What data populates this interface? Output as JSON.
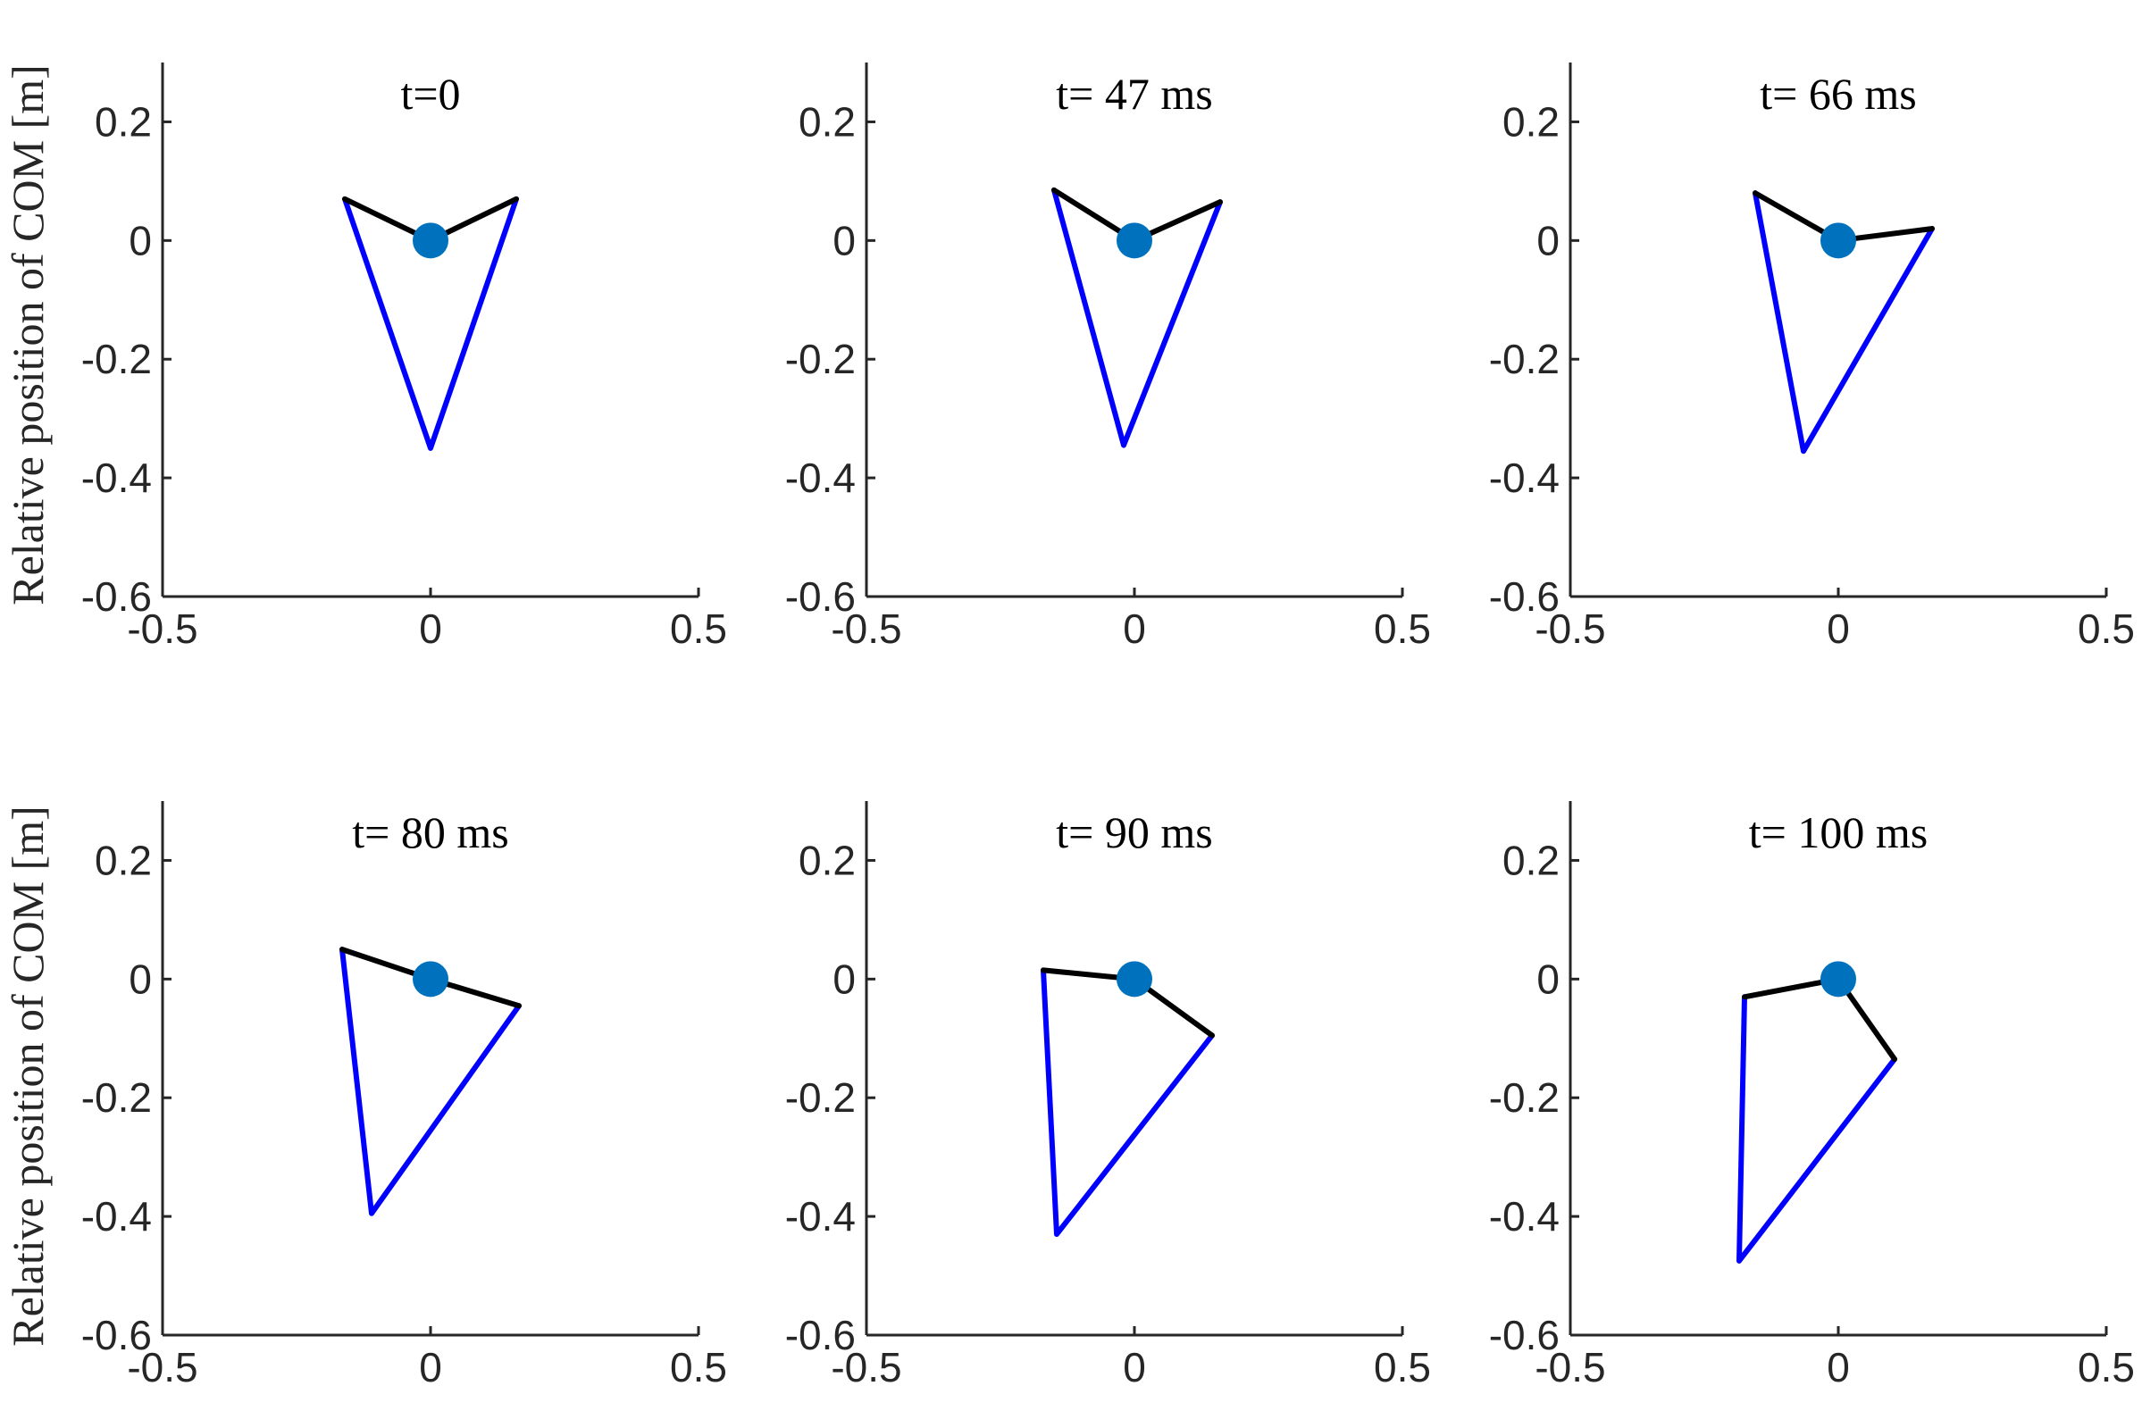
{
  "figure": {
    "ylabel": "Relative position of  COM [m]"
  },
  "colors": {
    "legs": "#0000ff",
    "trunk": "#000000",
    "com": "#0072bd",
    "axes": "#262626"
  },
  "chart_data": [
    {
      "type": "line",
      "title": "t=0",
      "xlim": [
        -0.5,
        0.5
      ],
      "ylim": [
        -0.6,
        0.3
      ],
      "xticks": [
        -0.5,
        0,
        0.5
      ],
      "xtick_labels": [
        "-0.5",
        "0",
        "0.5"
      ],
      "yticks": [
        0.2,
        0,
        -0.2,
        -0.4,
        -0.6
      ],
      "ytick_labels": [
        "0.2",
        "0",
        "-0.2",
        "-0.4",
        "-0.6"
      ],
      "series": [
        {
          "name": "legs",
          "x": [
            -0.16,
            0.0,
            0.16
          ],
          "y": [
            0.07,
            -0.35,
            0.07
          ]
        },
        {
          "name": "trunk",
          "x": [
            -0.16,
            0.0,
            0.16
          ],
          "y": [
            0.07,
            0.0,
            0.07
          ]
        },
        {
          "name": "com",
          "x": [
            0.0
          ],
          "y": [
            0.0
          ]
        }
      ]
    },
    {
      "type": "line",
      "title": "t= 47 ms",
      "xlim": [
        -0.5,
        0.5
      ],
      "ylim": [
        -0.6,
        0.3
      ],
      "xticks": [
        -0.5,
        0,
        0.5
      ],
      "xtick_labels": [
        "-0.5",
        "0",
        "0.5"
      ],
      "yticks": [
        0.2,
        0,
        -0.2,
        -0.4,
        -0.6
      ],
      "ytick_labels": [
        "0.2",
        "0",
        "-0.2",
        "-0.4",
        "-0.6"
      ],
      "series": [
        {
          "name": "legs",
          "x": [
            -0.15,
            -0.02,
            0.16
          ],
          "y": [
            0.085,
            -0.345,
            0.065
          ]
        },
        {
          "name": "trunk",
          "x": [
            -0.15,
            0.0,
            0.16
          ],
          "y": [
            0.085,
            0.0,
            0.065
          ]
        },
        {
          "name": "com",
          "x": [
            0.0
          ],
          "y": [
            0.0
          ]
        }
      ]
    },
    {
      "type": "line",
      "title": "t= 66 ms",
      "xlim": [
        -0.5,
        0.5
      ],
      "ylim": [
        -0.6,
        0.3
      ],
      "xticks": [
        -0.5,
        0,
        0.5
      ],
      "xtick_labels": [
        "-0.5",
        "0",
        "0.5"
      ],
      "yticks": [
        0.2,
        0,
        -0.2,
        -0.4,
        -0.6
      ],
      "ytick_labels": [
        "0.2",
        "0",
        "-0.2",
        "-0.4",
        "-0.6"
      ],
      "series": [
        {
          "name": "legs",
          "x": [
            -0.155,
            -0.065,
            0.175
          ],
          "y": [
            0.08,
            -0.355,
            0.02
          ]
        },
        {
          "name": "trunk",
          "x": [
            -0.155,
            0.0,
            0.175
          ],
          "y": [
            0.08,
            0.0,
            0.02
          ]
        },
        {
          "name": "com",
          "x": [
            0.0
          ],
          "y": [
            0.0
          ]
        }
      ]
    },
    {
      "type": "line",
      "title": "t= 80 ms",
      "xlim": [
        -0.5,
        0.5
      ],
      "ylim": [
        -0.6,
        0.3
      ],
      "xticks": [
        -0.5,
        0,
        0.5
      ],
      "xtick_labels": [
        "-0.5",
        "0",
        "0.5"
      ],
      "yticks": [
        0.2,
        0,
        -0.2,
        -0.4,
        -0.6
      ],
      "ytick_labels": [
        "0.2",
        "0",
        "-0.2",
        "-0.4",
        "-0.6"
      ],
      "series": [
        {
          "name": "legs",
          "x": [
            -0.165,
            -0.11,
            0.165
          ],
          "y": [
            0.05,
            -0.395,
            -0.045
          ]
        },
        {
          "name": "trunk",
          "x": [
            -0.165,
            0.0,
            0.165
          ],
          "y": [
            0.05,
            0.0,
            -0.045
          ]
        },
        {
          "name": "com",
          "x": [
            0.0
          ],
          "y": [
            0.0
          ]
        }
      ]
    },
    {
      "type": "line",
      "title": "t= 90 ms",
      "xlim": [
        -0.5,
        0.5
      ],
      "ylim": [
        -0.6,
        0.3
      ],
      "xticks": [
        -0.5,
        0,
        0.5
      ],
      "xtick_labels": [
        "-0.5",
        "0",
        "0.5"
      ],
      "yticks": [
        0.2,
        0,
        -0.2,
        -0.4,
        -0.6
      ],
      "ytick_labels": [
        "0.2",
        "0",
        "-0.2",
        "-0.4",
        "-0.6"
      ],
      "series": [
        {
          "name": "legs",
          "x": [
            -0.17,
            -0.145,
            0.145
          ],
          "y": [
            0.015,
            -0.43,
            -0.095
          ]
        },
        {
          "name": "trunk",
          "x": [
            -0.17,
            0.0,
            0.145
          ],
          "y": [
            0.015,
            0.0,
            -0.095
          ]
        },
        {
          "name": "com",
          "x": [
            0.0
          ],
          "y": [
            0.0
          ]
        }
      ]
    },
    {
      "type": "line",
      "title": "t= 100 ms",
      "xlim": [
        -0.5,
        0.5
      ],
      "ylim": [
        -0.6,
        0.3
      ],
      "xticks": [
        -0.5,
        0,
        0.5
      ],
      "xtick_labels": [
        "-0.5",
        "0",
        "0.5"
      ],
      "yticks": [
        0.2,
        0,
        -0.2,
        -0.4,
        -0.6
      ],
      "ytick_labels": [
        "0.2",
        "0",
        "-0.2",
        "-0.4",
        "-0.6"
      ],
      "series": [
        {
          "name": "legs",
          "x": [
            -0.175,
            -0.185,
            0.105
          ],
          "y": [
            -0.03,
            -0.475,
            -0.135
          ]
        },
        {
          "name": "trunk",
          "x": [
            -0.175,
            0.0,
            0.105
          ],
          "y": [
            -0.03,
            0.0,
            -0.135
          ]
        },
        {
          "name": "com",
          "x": [
            0.0
          ],
          "y": [
            0.0
          ]
        }
      ]
    }
  ]
}
